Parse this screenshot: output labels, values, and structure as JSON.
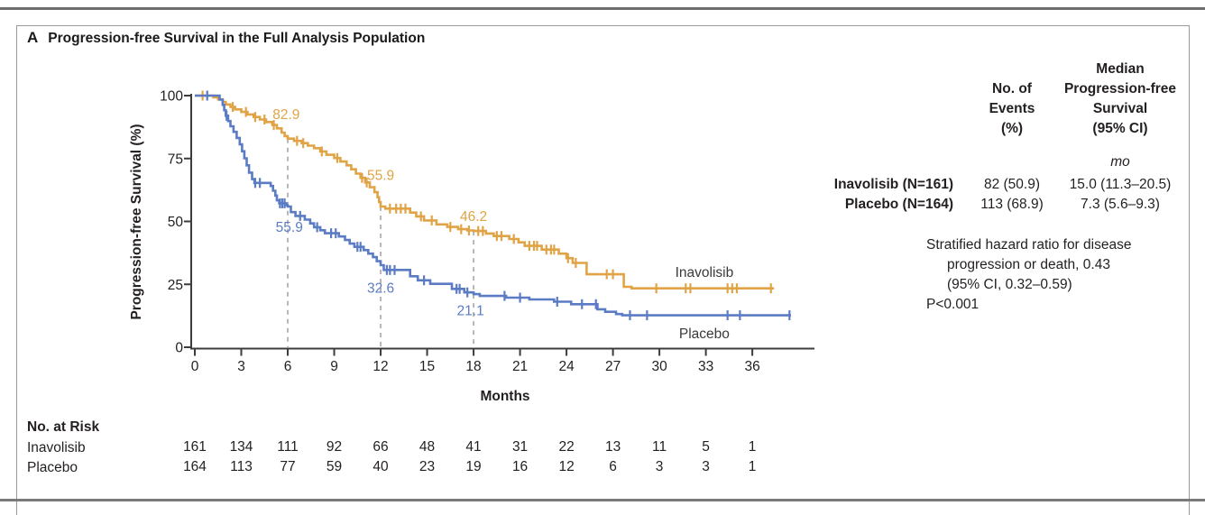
{
  "panel": {
    "letter": "A",
    "title": "Progression-free Survival in the Full Analysis Population"
  },
  "chart_data": {
    "type": "line",
    "subtype": "kaplan-meier-step",
    "title": "Progression-free Survival in the Full Analysis Population",
    "xlabel": "Months",
    "ylabel": "Progression-free Survival (%)",
    "xlim": [
      0,
      40
    ],
    "ylim": [
      0,
      100
    ],
    "xticks": [
      0,
      3,
      6,
      9,
      12,
      15,
      18,
      21,
      24,
      27,
      30,
      33,
      36
    ],
    "yticks": [
      0,
      25,
      50,
      75,
      100
    ],
    "grid": false,
    "dashed_landmarks": [
      {
        "month": 6,
        "from_pct": 82.9
      },
      {
        "month": 12,
        "from_pct": 55.9
      },
      {
        "month": 18,
        "from_pct": 46.2
      }
    ],
    "series": [
      {
        "name": "Inavolisib",
        "color": "#E0A345",
        "curve_label": {
          "text": "Inavolisib",
          "t": 32.9,
          "s": 29.7
        },
        "landmarks": [
          {
            "month": 6,
            "value": "82.9",
            "label_t": 5.9,
            "label_s": 92.5
          },
          {
            "month": 12,
            "value": "55.9",
            "label_t": 12.0,
            "label_s": 68.2
          },
          {
            "month": 18,
            "value": "46.2",
            "label_t": 18.0,
            "label_s": 52.0
          }
        ],
        "steps": [
          [
            0,
            100
          ],
          [
            1.2,
            99.3
          ],
          [
            1.5,
            98.5
          ],
          [
            1.8,
            97.5
          ],
          [
            2.0,
            96.5
          ],
          [
            2.3,
            95.5
          ],
          [
            2.6,
            94.5
          ],
          [
            3.0,
            93.5
          ],
          [
            3.4,
            92.5
          ],
          [
            3.8,
            91.5
          ],
          [
            4.2,
            90.5
          ],
          [
            4.6,
            89.5
          ],
          [
            5.0,
            88.3
          ],
          [
            5.3,
            87.0
          ],
          [
            5.6,
            85.3
          ],
          [
            5.8,
            83.9
          ],
          [
            6.0,
            82.9
          ],
          [
            6.4,
            82.0
          ],
          [
            6.9,
            81.1
          ],
          [
            7.3,
            80.1
          ],
          [
            7.7,
            79.1
          ],
          [
            8.1,
            77.8
          ],
          [
            8.5,
            76.5
          ],
          [
            9.0,
            75.2
          ],
          [
            9.4,
            73.8
          ],
          [
            9.8,
            72.3
          ],
          [
            10.1,
            70.7
          ],
          [
            10.4,
            69.0
          ],
          [
            10.7,
            67.3
          ],
          [
            11.0,
            65.5
          ],
          [
            11.3,
            63.6
          ],
          [
            11.6,
            61.6
          ],
          [
            11.8,
            59.6
          ],
          [
            11.9,
            57.7
          ],
          [
            12.0,
            55.9
          ],
          [
            12.3,
            55.1
          ],
          [
            13.9,
            53.5
          ],
          [
            14.3,
            52.0
          ],
          [
            14.8,
            50.4
          ],
          [
            15.6,
            48.8
          ],
          [
            16.3,
            47.8
          ],
          [
            17.0,
            46.9
          ],
          [
            17.6,
            46.4
          ],
          [
            18.0,
            46.2
          ],
          [
            18.8,
            45.2
          ],
          [
            19.3,
            44.2
          ],
          [
            20.3,
            43.0
          ],
          [
            20.9,
            41.7
          ],
          [
            21.3,
            40.3
          ],
          [
            22.4,
            38.8
          ],
          [
            23.5,
            37.2
          ],
          [
            24.0,
            35.4
          ],
          [
            24.4,
            33.5
          ],
          [
            25.3,
            29.0
          ],
          [
            27.7,
            24.0
          ],
          [
            28.2,
            23.4
          ],
          [
            37.4,
            23.4
          ]
        ],
        "censors": [
          0.5,
          2.45,
          3.3,
          3.9,
          4.5,
          5.1,
          6.6,
          7.0,
          8.2,
          9.2,
          10.8,
          11.1,
          12.6,
          13.0,
          13.3,
          13.6,
          14.6,
          15.3,
          16.5,
          17.2,
          17.7,
          18.3,
          18.6,
          19.5,
          19.8,
          20.6,
          21.6,
          21.9,
          22.1,
          22.7,
          23.0,
          23.2,
          24.1,
          24.6,
          26.6,
          27.0,
          29.8,
          31.7,
          32.0,
          34.4,
          34.7,
          35.0,
          37.2
        ]
      },
      {
        "name": "Placebo",
        "color": "#5B7CC4",
        "curve_label": {
          "text": "Placebo",
          "t": 32.9,
          "s": 5.4
        },
        "landmarks": [
          {
            "month": 6,
            "value": "55.9",
            "label_t": 6.1,
            "label_s": 47.7
          },
          {
            "month": 12,
            "value": "32.6",
            "label_t": 12.0,
            "label_s": 23.5
          },
          {
            "month": 18,
            "value": "21.1",
            "label_t": 17.8,
            "label_s": 14.5
          }
        ],
        "steps": [
          [
            0,
            100
          ],
          [
            1.6,
            98.4
          ],
          [
            1.8,
            96.3
          ],
          [
            1.9,
            94.2
          ],
          [
            2.0,
            92.0
          ],
          [
            2.15,
            89.9
          ],
          [
            2.3,
            87.8
          ],
          [
            2.5,
            85.6
          ],
          [
            2.7,
            83.2
          ],
          [
            2.9,
            80.6
          ],
          [
            3.05,
            77.9
          ],
          [
            3.2,
            75.1
          ],
          [
            3.35,
            72.3
          ],
          [
            3.5,
            69.4
          ],
          [
            3.7,
            66.8
          ],
          [
            3.85,
            65.3
          ],
          [
            4.9,
            64.1
          ],
          [
            5.05,
            62.2
          ],
          [
            5.2,
            60.3
          ],
          [
            5.3,
            58.4
          ],
          [
            5.45,
            57.2
          ],
          [
            5.9,
            56.5
          ],
          [
            6.0,
            55.9
          ],
          [
            6.2,
            53.7
          ],
          [
            6.5,
            52.2
          ],
          [
            7.1,
            50.7
          ],
          [
            7.45,
            49.2
          ],
          [
            7.7,
            47.7
          ],
          [
            8.1,
            46.5
          ],
          [
            8.4,
            45.3
          ],
          [
            9.3,
            44.0
          ],
          [
            9.7,
            42.6
          ],
          [
            10.0,
            41.2
          ],
          [
            10.3,
            39.9
          ],
          [
            10.9,
            38.6
          ],
          [
            11.2,
            37.2
          ],
          [
            11.5,
            35.8
          ],
          [
            11.75,
            34.2
          ],
          [
            12.0,
            32.6
          ],
          [
            12.2,
            30.7
          ],
          [
            13.9,
            28.2
          ],
          [
            14.4,
            26.6
          ],
          [
            15.2,
            25.2
          ],
          [
            16.6,
            23.2
          ],
          [
            17.4,
            21.8
          ],
          [
            18.0,
            21.1
          ],
          [
            18.4,
            20.4
          ],
          [
            20.1,
            19.7
          ],
          [
            21.6,
            19.0
          ],
          [
            23.2,
            18.1
          ],
          [
            24.3,
            17.1
          ],
          [
            26.0,
            15.1
          ],
          [
            26.5,
            14.1
          ],
          [
            27.2,
            13.2
          ],
          [
            27.6,
            12.7
          ],
          [
            38.5,
            12.7
          ]
        ],
        "censors": [
          0.8,
          2.05,
          3.9,
          4.2,
          5.5,
          5.65,
          5.8,
          6.8,
          7.9,
          8.8,
          9.1,
          10.5,
          10.7,
          12.4,
          12.6,
          12.9,
          14.8,
          16.9,
          17.1,
          17.6,
          20.0,
          21.0,
          23.4,
          25.0,
          25.9,
          28.1,
          29.2,
          34.4,
          35.2,
          38.4
        ]
      }
    ],
    "at_risk": {
      "header": "No. at Risk",
      "rows": [
        {
          "label": "Inavolisib",
          "values": [
            161,
            134,
            111,
            92,
            66,
            48,
            41,
            31,
            22,
            13,
            11,
            5,
            1
          ]
        },
        {
          "label": "Placebo",
          "values": [
            164,
            113,
            77,
            59,
            40,
            23,
            19,
            16,
            12,
            6,
            3,
            3,
            1
          ]
        }
      ]
    }
  },
  "sidebar": {
    "events_header": [
      "No. of",
      "Events",
      "(%)"
    ],
    "median_header": [
      "Median",
      "Progression-free",
      "Survival",
      "(95% CI)"
    ],
    "unit": "mo",
    "rows": [
      {
        "label": "Inavolisib (N=161)",
        "events": "82 (50.9)",
        "median": "15.0 (11.3–20.5)"
      },
      {
        "label": "Placebo (N=164)",
        "events": "113 (68.9)",
        "median": "7.3 (5.6–9.3)"
      }
    ],
    "hazard_lines": [
      "Stratified hazard ratio for disease",
      "progression or death, 0.43",
      "(95% CI, 0.32–0.59)",
      "P<0.001"
    ]
  },
  "colors": {
    "inavolisib": "#E0A345",
    "placebo": "#5B7CC4",
    "axis": "#3c3c3c",
    "dashed": "#9a9a9a",
    "text": "#231f20",
    "curve_label_text": "#3a3a3a"
  }
}
